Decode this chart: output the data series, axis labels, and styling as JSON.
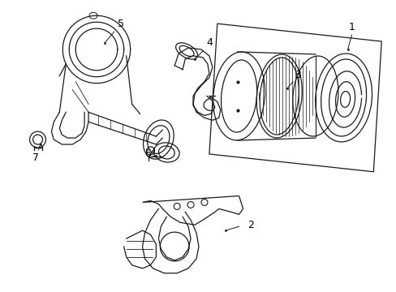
{
  "background_color": "#ffffff",
  "line_color": "#1a1a1a",
  "fig_width": 4.89,
  "fig_height": 3.6,
  "dpi": 100,
  "border_color": "#dddddd",
  "gray_fill": "#e8e8e8",
  "light_gray": "#d0d0d0"
}
